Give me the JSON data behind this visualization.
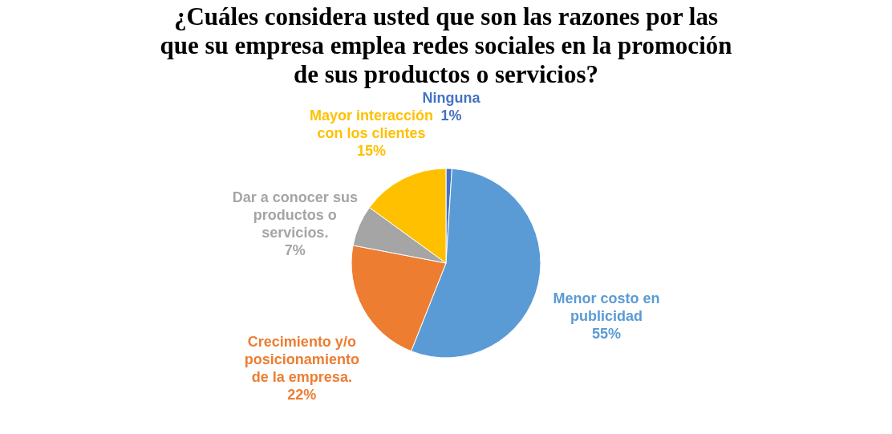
{
  "chart_data": {
    "type": "pie",
    "title": "¿Cuáles considera usted que son las razones por las que su empresa emplea redes sociales en la promoción de sus productos o servicios?",
    "categories": [
      "Ninguna",
      "Menor costo en publicidad",
      "Crecimiento y/o posicionamiento de la empresa.",
      "Dar a conocer sus productos o servicios.",
      "Mayor interacción con los clientes"
    ],
    "values": [
      1,
      55,
      22,
      7,
      15
    ],
    "colors": [
      "#4472c4",
      "#5b9bd5",
      "#ed7d31",
      "#a5a5a5",
      "#ffc000"
    ],
    "value_labels": [
      "1%",
      "55%",
      "22%",
      "7%",
      "15%"
    ]
  }
}
